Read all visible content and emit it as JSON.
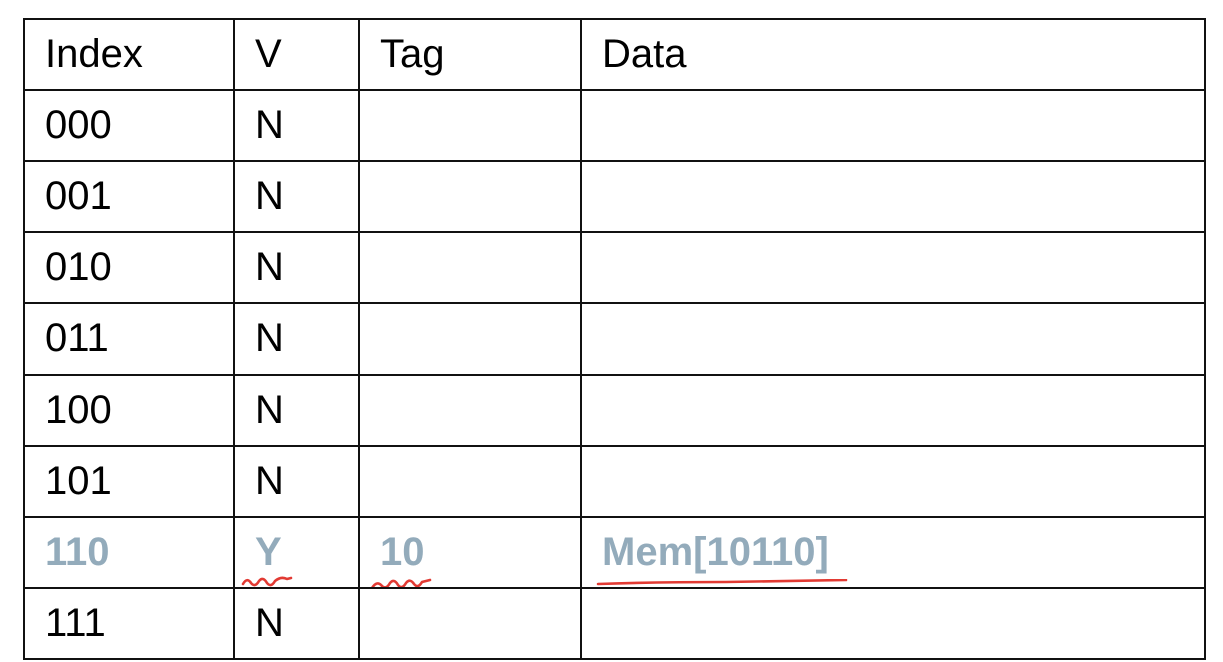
{
  "table": {
    "headers": [
      "Index",
      "V",
      "Tag",
      "Data"
    ],
    "rows": [
      {
        "index": "000",
        "v": "N",
        "tag": "",
        "data": ""
      },
      {
        "index": "001",
        "v": "N",
        "tag": "",
        "data": ""
      },
      {
        "index": "010",
        "v": "N",
        "tag": "",
        "data": ""
      },
      {
        "index": "011",
        "v": "N",
        "tag": "",
        "data": ""
      },
      {
        "index": "100",
        "v": "N",
        "tag": "",
        "data": ""
      },
      {
        "index": "101",
        "v": "N",
        "tag": "",
        "data": ""
      },
      {
        "index": "110",
        "v": "Y",
        "tag": "10",
        "data": "Mem[10110]"
      },
      {
        "index": "111",
        "v": "N",
        "tag": "",
        "data": ""
      }
    ]
  },
  "colors": {
    "highlight_text": "#93abbb",
    "annotation_ink": "#e23a33",
    "grid": "#111111"
  }
}
